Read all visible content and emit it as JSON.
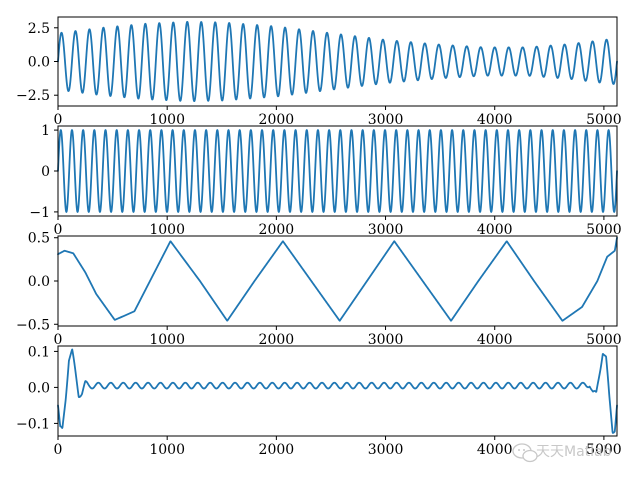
{
  "chart_data": [
    {
      "type": "line",
      "x_range": [
        0,
        5120
      ],
      "ylim": [
        -3.3,
        3.3
      ],
      "x_ticks": [
        "0",
        "1000",
        "2000",
        "3000",
        "4000",
        "5000"
      ],
      "y_ticks": [
        "2.5",
        "0.0",
        "−2.5"
      ],
      "y_tick_values": [
        2.5,
        0.0,
        -2.5
      ],
      "series": [
        {
          "cycles": 40,
          "amplitude_envelope": {
            "x": [
              0,
              100,
              400,
              800,
              1200,
              1500,
              2000,
              2500,
              3000,
              3500,
              3900,
              4300,
              4700,
              5000,
              5120
            ],
            "y": [
              2.1,
              2.2,
              2.5,
              2.8,
              2.95,
              2.9,
              2.6,
              2.1,
              1.6,
              1.25,
              1.05,
              1.05,
              1.3,
              1.6,
              1.7
            ]
          }
        }
      ],
      "grid": false
    },
    {
      "type": "line",
      "x_range": [
        0,
        5120
      ],
      "ylim": [
        -1.1,
        1.1
      ],
      "x_ticks": [
        "0",
        "1000",
        "2000",
        "3000",
        "4000",
        "5000"
      ],
      "y_ticks": [
        "1",
        "0",
        "−1"
      ],
      "y_tick_values": [
        1,
        0,
        -1
      ],
      "series": [
        {
          "cycles": 50,
          "amplitude": 1.0
        }
      ],
      "grid": false
    },
    {
      "type": "line",
      "x_range": [
        0,
        5120
      ],
      "ylim": [
        -0.52,
        0.52
      ],
      "x_ticks": [
        "0",
        "1000",
        "2000",
        "3000",
        "4000",
        "5000"
      ],
      "y_ticks": [
        "0.5",
        "0.0",
        "−0.5"
      ],
      "y_tick_values": [
        0.5,
        0.0,
        -0.5
      ],
      "series": [
        {
          "x": [
            0,
            60,
            140,
            250,
            350,
            520,
            700,
            1030,
            1300,
            1550,
            1800,
            2060,
            2320,
            2580,
            2830,
            3080,
            3340,
            3600,
            3850,
            4110,
            4360,
            4620,
            4800,
            4940,
            5030,
            5100,
            5120
          ],
          "y": [
            0.31,
            0.35,
            0.32,
            0.1,
            -0.15,
            -0.45,
            -0.35,
            0.46,
            0.0,
            -0.46,
            0.0,
            0.46,
            0.0,
            -0.46,
            0.0,
            0.46,
            0.0,
            -0.46,
            0.0,
            0.46,
            0.0,
            -0.46,
            -0.3,
            0.0,
            0.28,
            0.35,
            0.5
          ]
        }
      ],
      "grid": false
    },
    {
      "type": "line",
      "x_range": [
        0,
        5120
      ],
      "ylim": [
        -0.135,
        0.115
      ],
      "x_ticks": [
        "0",
        "1000",
        "2000",
        "3000",
        "4000",
        "5000"
      ],
      "y_ticks": [
        "0.1",
        "0.0",
        "−0.1"
      ],
      "y_tick_values": [
        0.1,
        0.0,
        -0.1
      ],
      "series": [
        {
          "x": [
            0,
            20,
            40,
            70,
            100,
            130,
            160,
            190,
            220,
            250,
            280,
            4840,
            4870,
            4900,
            4930,
            4960,
            4990,
            5020,
            5050,
            5080,
            5100,
            5120
          ],
          "y": [
            -0.05,
            -0.115,
            -0.12,
            -0.03,
            0.08,
            0.1,
            0.04,
            -0.02,
            -0.015,
            0.01,
            0.005,
            0.005,
            0.01,
            -0.015,
            -0.02,
            0.04,
            0.1,
            0.08,
            -0.03,
            -0.12,
            -0.115,
            -0.05
          ],
          "ripple": {
            "cycles": 45,
            "amplitude": 0.008
          }
        }
      ],
      "grid": false
    }
  ],
  "style": {
    "line_color": "#1f77b4",
    "axis_color": "#000000",
    "background": "#ffffff"
  },
  "watermark": {
    "text": "天天Matlab",
    "icon": "wechat-chat-icon"
  }
}
